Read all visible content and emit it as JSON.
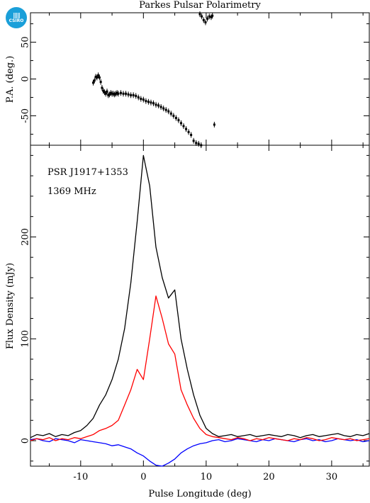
{
  "logo": {
    "text": "CSIRO",
    "icon": "csiro-logo-icon",
    "color": "#1a9fd9"
  },
  "chart_data": [
    {
      "type": "scatter",
      "title": "Parkes Pulsar Polarimetry",
      "xlabel": "",
      "ylabel": "P.A. (deg.)",
      "xlim": [
        -18,
        36
      ],
      "ylim": [
        -90,
        90
      ],
      "yticks": [
        -50,
        0,
        50
      ],
      "points": [
        [
          -8.0,
          -5
        ],
        [
          -7.8,
          -2
        ],
        [
          -7.6,
          3
        ],
        [
          -7.4,
          2
        ],
        [
          -7.2,
          5
        ],
        [
          -7.0,
          2
        ],
        [
          -6.8,
          -4
        ],
        [
          -6.6,
          -12
        ],
        [
          -6.4,
          -16
        ],
        [
          -6.2,
          -18
        ],
        [
          -6.0,
          -20
        ],
        [
          -5.8,
          -17
        ],
        [
          -5.6,
          -22
        ],
        [
          -5.4,
          -21
        ],
        [
          -5.2,
          -19
        ],
        [
          -5.0,
          -20
        ],
        [
          -4.8,
          -20
        ],
        [
          -4.6,
          -21
        ],
        [
          -4.4,
          -20
        ],
        [
          -4.2,
          -19
        ],
        [
          -4.0,
          -20
        ],
        [
          -3.6,
          -19
        ],
        [
          -3.2,
          -20
        ],
        [
          -2.8,
          -20
        ],
        [
          -2.4,
          -21
        ],
        [
          -2.0,
          -22
        ],
        [
          -1.6,
          -22
        ],
        [
          -1.2,
          -23
        ],
        [
          -0.8,
          -25
        ],
        [
          -0.4,
          -27
        ],
        [
          0.0,
          -28
        ],
        [
          0.4,
          -30
        ],
        [
          0.8,
          -31
        ],
        [
          1.2,
          -32
        ],
        [
          1.6,
          -33
        ],
        [
          2.0,
          -35
        ],
        [
          2.4,
          -36
        ],
        [
          2.8,
          -38
        ],
        [
          3.2,
          -40
        ],
        [
          3.6,
          -42
        ],
        [
          4.0,
          -44
        ],
        [
          4.4,
          -47
        ],
        [
          4.8,
          -50
        ],
        [
          5.2,
          -53
        ],
        [
          5.6,
          -56
        ],
        [
          6.0,
          -60
        ],
        [
          6.4,
          -64
        ],
        [
          6.8,
          -68
        ],
        [
          7.2,
          -72
        ],
        [
          7.6,
          -76
        ],
        [
          8.0,
          -84
        ],
        [
          8.4,
          -87
        ],
        [
          8.8,
          -88
        ],
        [
          9.2,
          -90
        ],
        [
          9.0,
          88
        ],
        [
          9.3,
          85
        ],
        [
          9.6,
          80
        ],
        [
          9.9,
          77
        ],
        [
          10.2,
          82
        ],
        [
          10.5,
          85
        ],
        [
          10.8,
          84
        ],
        [
          11.0,
          86
        ],
        [
          11.3,
          -62
        ]
      ]
    },
    {
      "type": "line",
      "title": "",
      "xlabel": "Pulse Longitude (deg)",
      "ylabel": "Flux Density (mJy)",
      "xlim": [
        -18,
        36
      ],
      "ylim": [
        -25,
        290
      ],
      "xticks": [
        -10,
        0,
        10,
        20,
        30
      ],
      "yticks": [
        0,
        100,
        200
      ],
      "annotations": [
        "PSR J1917+1353",
        "1369 MHz"
      ],
      "x": [
        -18,
        -17,
        -16,
        -15,
        -14,
        -13,
        -12,
        -11,
        -10,
        -9,
        -8,
        -7,
        -6,
        -5,
        -4,
        -3,
        -2,
        -1,
        0,
        1,
        2,
        3,
        4,
        5,
        6,
        7,
        8,
        9,
        10,
        11,
        12,
        13,
        14,
        15,
        16,
        17,
        18,
        19,
        20,
        21,
        22,
        23,
        24,
        25,
        26,
        27,
        28,
        29,
        30,
        31,
        32,
        33,
        34,
        35,
        36
      ],
      "series": [
        {
          "color": "#000000",
          "values": [
            3,
            6,
            5,
            7,
            4,
            6,
            5,
            8,
            10,
            15,
            22,
            35,
            45,
            60,
            80,
            110,
            155,
            215,
            280,
            250,
            190,
            160,
            140,
            148,
            100,
            70,
            45,
            25,
            12,
            7,
            4,
            5,
            6,
            4,
            5,
            6,
            4,
            5,
            6,
            5,
            4,
            6,
            5,
            3,
            5,
            6,
            4,
            5,
            6,
            7,
            5,
            4,
            6,
            5,
            7
          ]
        },
        {
          "color": "#ff0000",
          "values": [
            0,
            2,
            1,
            3,
            0,
            2,
            1,
            3,
            2,
            4,
            6,
            10,
            12,
            15,
            20,
            35,
            50,
            70,
            60,
            100,
            142,
            120,
            95,
            85,
            50,
            35,
            22,
            12,
            6,
            4,
            3,
            2,
            1,
            3,
            2,
            0,
            2,
            1,
            3,
            2,
            1,
            0,
            2,
            1,
            3,
            2,
            0,
            1,
            3,
            2,
            1,
            2,
            0,
            1,
            2
          ]
        },
        {
          "color": "#0000ff",
          "values": [
            1,
            2,
            0,
            -1,
            2,
            1,
            0,
            -2,
            1,
            0,
            -1,
            -2,
            -3,
            -5,
            -4,
            -6,
            -8,
            -12,
            -15,
            -20,
            -24,
            -25,
            -22,
            -18,
            -12,
            -8,
            -5,
            -3,
            -2,
            0,
            1,
            -1,
            0,
            2,
            1,
            0,
            -1,
            1,
            0,
            2,
            1,
            0,
            -1,
            1,
            2,
            0,
            1,
            -1,
            0,
            2,
            1,
            0,
            1,
            -1,
            0
          ]
        }
      ]
    }
  ]
}
